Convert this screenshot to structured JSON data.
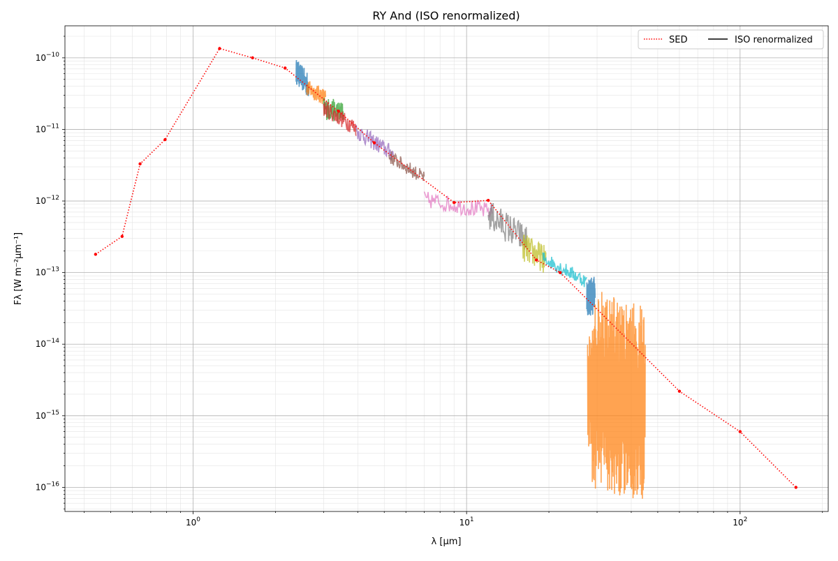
{
  "chart_data": {
    "type": "line",
    "title": "RY And (ISO renormalized)",
    "xlabel": "λ [μm]",
    "ylabel": "Fλ [W m⁻²μm⁻¹]",
    "xscale": "log",
    "yscale": "log",
    "xlim": [
      0.34,
      210
    ],
    "ylim": [
      4.6e-17,
      2.8e-10
    ],
    "grid": true,
    "legend": {
      "placement": "top-right",
      "entries": [
        {
          "label": "SED",
          "color": "#ff0000",
          "style": "dotted"
        },
        {
          "label": "ISO renormalized",
          "color": "#000000",
          "style": "solid"
        }
      ]
    },
    "x_ticks": [
      {
        "value": 1,
        "base": "10",
        "exp": "0"
      },
      {
        "value": 10,
        "base": "10",
        "exp": "1"
      },
      {
        "value": 100,
        "base": "10",
        "exp": "2"
      }
    ],
    "y_ticks": [
      {
        "value": 1e-10,
        "base": "10",
        "exp": "−10"
      },
      {
        "value": 1e-11,
        "base": "10",
        "exp": "−11"
      },
      {
        "value": 1e-12,
        "base": "10",
        "exp": "−12"
      },
      {
        "value": 1e-13,
        "base": "10",
        "exp": "−13"
      },
      {
        "value": 1e-14,
        "base": "10",
        "exp": "−14"
      },
      {
        "value": 1e-15,
        "base": "10",
        "exp": "−15"
      },
      {
        "value": 1e-16,
        "base": "10",
        "exp": "−16"
      }
    ],
    "sed": {
      "name": "SED",
      "color": "#ff0000",
      "points": [
        [
          0.44,
          1.8e-13
        ],
        [
          0.55,
          3.2e-13
        ],
        [
          0.64,
          3.3e-12
        ],
        [
          0.79,
          7.2e-12
        ],
        [
          1.25,
          1.35e-10
        ],
        [
          1.65,
          1e-10
        ],
        [
          2.17,
          7.2e-11
        ],
        [
          3.4,
          1.8e-11
        ],
        [
          4.6,
          6.5e-12
        ],
        [
          9.0,
          9.5e-13
        ],
        [
          12.0,
          1.02e-12
        ],
        [
          18.0,
          1.5e-13
        ],
        [
          22.0,
          1e-13
        ],
        [
          60.0,
          2.2e-15
        ],
        [
          100.0,
          6e-16
        ],
        [
          160.0,
          1e-16
        ]
      ]
    },
    "iso_segments": [
      {
        "color": "#1f77b4",
        "range": [
          2.38,
          2.65
        ],
        "base": [
          6.5e-11,
          4e-11
        ],
        "amp": 0.18
      },
      {
        "color": "#ff7f0e",
        "range": [
          2.6,
          3.05
        ],
        "base": [
          3.8e-11,
          2.8e-11
        ],
        "amp": 0.12
      },
      {
        "color": "#2ca02c",
        "range": [
          3.0,
          3.55
        ],
        "base": [
          2e-11,
          1.7e-11
        ],
        "amp": 0.16
      },
      {
        "color": "#d62728",
        "range": [
          3.0,
          3.95
        ],
        "base": [
          2e-11,
          1.05e-11
        ],
        "amp": 0.12
      },
      {
        "color": "#9467bd",
        "range": [
          3.95,
          5.4
        ],
        "base": [
          9.5e-12,
          4.5e-12
        ],
        "amp": 0.12
      },
      {
        "color": "#8c564b",
        "range": [
          5.2,
          7.0
        ],
        "base": [
          4.2e-12,
          2.1e-12
        ],
        "amp": 0.1
      },
      {
        "color": "#e377c2",
        "range": [
          7.0,
          12.4
        ],
        "base": [
          1.05e-12,
          7e-13
        ],
        "amp": 0.12
      },
      {
        "color": "#7f7f7f",
        "range": [
          12.0,
          16.6
        ],
        "base": [
          6.5e-13,
          2.8e-13
        ],
        "amp": 0.22
      },
      {
        "color": "#bcbd22",
        "range": [
          16.0,
          19.5
        ],
        "base": [
          2.3e-13,
          1.5e-13
        ],
        "amp": 0.2
      },
      {
        "color": "#17becf",
        "range": [
          19.0,
          27.5
        ],
        "base": [
          1.6e-13,
          7.5e-14
        ],
        "amp": 0.1
      },
      {
        "color": "#1f77b4",
        "range": [
          27.5,
          29.5
        ],
        "base": [
          4.5e-14,
          5e-14
        ],
        "amp": 0.28
      },
      {
        "color": "#ff7f0e",
        "range": [
          27.7,
          45.0
        ],
        "base": [
          2.5e-15,
          1.5e-15
        ],
        "amp": 0.9
      }
    ]
  }
}
